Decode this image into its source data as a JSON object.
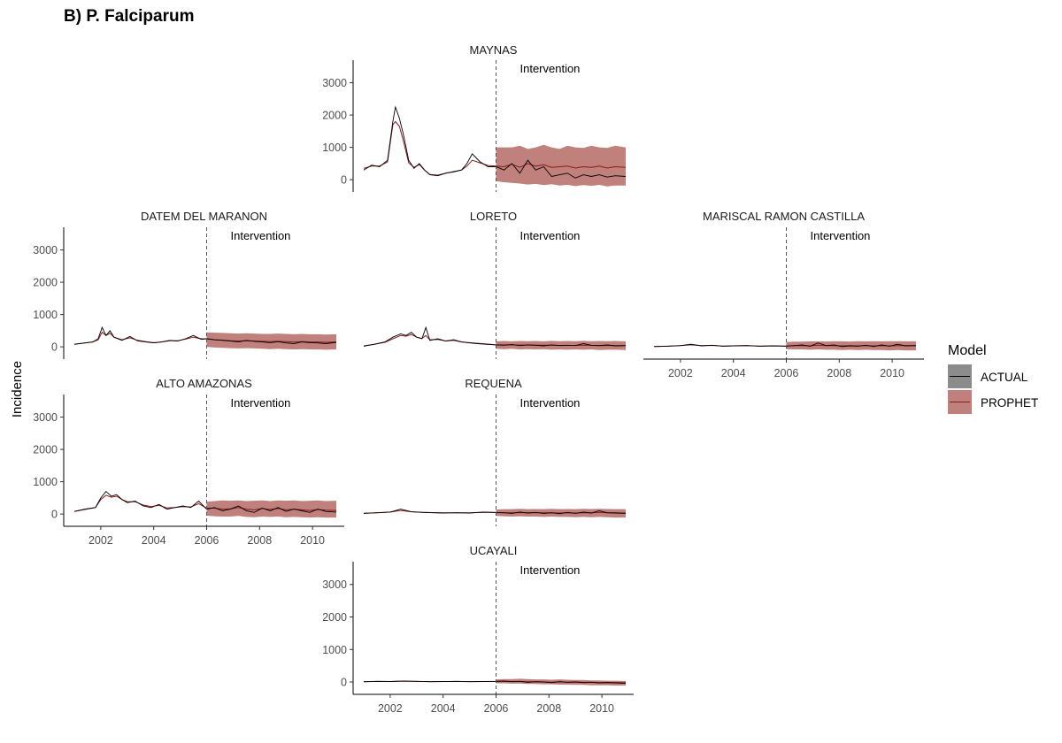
{
  "figure": {
    "title": "B) P. Falciparum"
  },
  "chart_data": {
    "type": "line",
    "title": "B) P. Falciparum",
    "ylabel": "Incidence",
    "xlabel": "",
    "xlim": [
      2000.6,
      2011.2
    ],
    "ylim": [
      -380,
      3700
    ],
    "x_ticks": [
      "2002",
      "2004",
      "2006",
      "2008",
      "2010"
    ],
    "y_ticks": [
      "0",
      "1000",
      "2000",
      "3000"
    ],
    "intervention": {
      "x": 2006,
      "label": "Intervention"
    },
    "legend": {
      "title": "Model",
      "placement": "right",
      "items": [
        {
          "label": "ACTUAL",
          "line_color": "#000000",
          "fill_color": "#8c8c8c"
        },
        {
          "label": "PROPHET",
          "line_color": "#8b1a1a",
          "fill_color": "#c0807c"
        }
      ]
    },
    "colors": {
      "actual": "#000000",
      "prophet": "#8b1a1a",
      "band": "#c0807c"
    },
    "panels": [
      {
        "name": "MAYNAS",
        "x": [
          2001,
          2001.3,
          2001.6,
          2001.9,
          2002.1,
          2002.2,
          2002.35,
          2002.5,
          2002.7,
          2002.9,
          2003.1,
          2003.3,
          2003.5,
          2003.8,
          2004.1,
          2004.4,
          2004.7,
          2004.9,
          2005.1,
          2005.4,
          2005.7,
          2006,
          2006.3,
          2006.6,
          2006.9,
          2007.2,
          2007.5,
          2007.8,
          2008.1,
          2008.4,
          2008.7,
          2009,
          2009.3,
          2009.6,
          2009.9,
          2010.2,
          2010.5,
          2010.9
        ],
        "actual": [
          300,
          450,
          400,
          600,
          1800,
          2250,
          1900,
          1400,
          600,
          350,
          500,
          300,
          150,
          120,
          200,
          250,
          300,
          500,
          800,
          550,
          400,
          400,
          300,
          500,
          200,
          600,
          300,
          400,
          100,
          150,
          200,
          50,
          150,
          100,
          150,
          80,
          120,
          100
        ],
        "prophet": [
          350,
          420,
          420,
          550,
          1700,
          1800,
          1650,
          1200,
          520,
          380,
          470,
          300,
          160,
          140,
          200,
          240,
          300,
          420,
          600,
          520,
          440,
          420,
          400,
          480,
          380,
          500,
          420,
          460,
          380,
          400,
          420,
          360,
          400,
          380,
          420,
          360,
          400,
          380
        ],
        "lower": [
          350,
          420,
          420,
          550,
          1700,
          1800,
          1650,
          1200,
          520,
          380,
          470,
          300,
          160,
          140,
          200,
          240,
          300,
          420,
          600,
          520,
          440,
          -50,
          -80,
          -100,
          -120,
          -150,
          -130,
          -170,
          -140,
          -180,
          -160,
          -200,
          -170,
          -190,
          -160,
          -210,
          -180,
          -180
        ],
        "upper": [
          350,
          420,
          420,
          550,
          1700,
          1800,
          1650,
          1200,
          520,
          380,
          470,
          300,
          160,
          140,
          200,
          240,
          300,
          420,
          600,
          520,
          440,
          1000,
          1000,
          1000,
          1050,
          950,
          1000,
          1080,
          1000,
          950,
          1050,
          1000,
          980,
          1050,
          1000,
          980,
          1050,
          1000
        ]
      },
      {
        "name": "DATEM DEL MARANON",
        "x": [
          2001,
          2001.4,
          2001.7,
          2001.9,
          2002.05,
          2002.2,
          2002.35,
          2002.5,
          2002.8,
          2003.1,
          2003.4,
          2003.7,
          2004,
          2004.3,
          2004.6,
          2004.9,
          2005.2,
          2005.5,
          2005.8,
          2006,
          2006.3,
          2006.6,
          2006.9,
          2007.2,
          2007.5,
          2007.8,
          2008.1,
          2008.4,
          2008.7,
          2009,
          2009.3,
          2009.6,
          2009.9,
          2010.2,
          2010.5,
          2010.9
        ],
        "actual": [
          80,
          120,
          150,
          250,
          600,
          350,
          500,
          300,
          200,
          320,
          180,
          150,
          120,
          150,
          200,
          180,
          250,
          350,
          230,
          250,
          220,
          200,
          180,
          150,
          200,
          170,
          150,
          130,
          160,
          120,
          100,
          150,
          130,
          120,
          100,
          140
        ],
        "prophet": [
          80,
          120,
          150,
          220,
          450,
          350,
          420,
          300,
          220,
          280,
          200,
          160,
          130,
          150,
          190,
          190,
          240,
          300,
          250,
          250,
          220,
          210,
          190,
          180,
          190,
          180,
          170,
          160,
          170,
          160,
          150,
          160,
          150,
          150,
          140,
          150
        ],
        "lower": [
          80,
          120,
          150,
          220,
          450,
          350,
          420,
          300,
          220,
          280,
          200,
          160,
          130,
          150,
          190,
          190,
          240,
          300,
          250,
          0,
          -20,
          -30,
          -40,
          -50,
          -40,
          -50,
          -60,
          -70,
          -60,
          -70,
          -80,
          -70,
          -80,
          -80,
          -90,
          -80
        ],
        "upper": [
          80,
          120,
          150,
          220,
          450,
          350,
          420,
          300,
          220,
          280,
          200,
          160,
          130,
          150,
          190,
          190,
          240,
          300,
          250,
          450,
          440,
          430,
          420,
          410,
          420,
          410,
          400,
          400,
          410,
          400,
          390,
          400,
          390,
          390,
          380,
          390
        ]
      },
      {
        "name": "LORETO",
        "x": [
          2001,
          2001.4,
          2001.8,
          2002.1,
          2002.4,
          2002.6,
          2002.8,
          2003,
          2003.2,
          2003.35,
          2003.5,
          2003.8,
          2004.1,
          2004.4,
          2004.7,
          2005,
          2005.3,
          2005.6,
          2006,
          2006.3,
          2006.6,
          2006.9,
          2007.2,
          2007.5,
          2007.8,
          2008.1,
          2008.4,
          2008.7,
          2009,
          2009.3,
          2009.6,
          2009.9,
          2010.2,
          2010.5,
          2010.9
        ],
        "actual": [
          20,
          80,
          150,
          300,
          400,
          350,
          450,
          300,
          250,
          600,
          200,
          250,
          180,
          220,
          150,
          120,
          100,
          80,
          60,
          50,
          70,
          40,
          60,
          50,
          30,
          60,
          40,
          50,
          40,
          100,
          50,
          40,
          60,
          30,
          40
        ],
        "prophet": [
          30,
          80,
          140,
          250,
          350,
          330,
          380,
          300,
          260,
          350,
          220,
          230,
          180,
          200,
          150,
          130,
          110,
          90,
          60,
          60,
          60,
          55,
          55,
          50,
          50,
          50,
          45,
          45,
          45,
          50,
          45,
          40,
          45,
          40,
          40
        ],
        "lower": [
          30,
          80,
          140,
          250,
          350,
          330,
          380,
          300,
          260,
          350,
          220,
          230,
          180,
          200,
          150,
          130,
          110,
          90,
          -60,
          -70,
          -60,
          -80,
          -70,
          -80,
          -70,
          -90,
          -80,
          -90,
          -80,
          -90,
          -80,
          -100,
          -90,
          -90,
          -100
        ],
        "upper": [
          30,
          80,
          140,
          250,
          350,
          330,
          380,
          300,
          260,
          350,
          220,
          230,
          180,
          200,
          150,
          130,
          110,
          90,
          170,
          180,
          170,
          180,
          175,
          180,
          170,
          185,
          175,
          180,
          175,
          185,
          175,
          180,
          175,
          180,
          170
        ]
      },
      {
        "name": "MARISCAL RAMON CASTILLA",
        "x": [
          2001,
          2001.5,
          2002,
          2002.4,
          2002.8,
          2003.2,
          2003.6,
          2004,
          2004.5,
          2005,
          2005.5,
          2006,
          2006.3,
          2006.6,
          2006.9,
          2007.2,
          2007.5,
          2007.8,
          2008.1,
          2008.4,
          2008.7,
          2009,
          2009.3,
          2009.6,
          2009.9,
          2010.2,
          2010.5,
          2010.9
        ],
        "actual": [
          10,
          20,
          40,
          80,
          30,
          50,
          20,
          30,
          40,
          20,
          30,
          20,
          40,
          60,
          20,
          120,
          40,
          60,
          10,
          30,
          20,
          50,
          10,
          60,
          20,
          80,
          30,
          40
        ],
        "prophet": [
          10,
          20,
          35,
          60,
          35,
          45,
          25,
          30,
          35,
          25,
          30,
          25,
          35,
          40,
          30,
          50,
          40,
          40,
          30,
          35,
          30,
          35,
          30,
          35,
          30,
          40,
          35,
          35
        ],
        "lower": [
          10,
          20,
          35,
          60,
          35,
          45,
          25,
          30,
          35,
          25,
          30,
          -70,
          -80,
          -80,
          -90,
          -80,
          -90,
          -90,
          -100,
          -90,
          -100,
          -90,
          -100,
          -100,
          -110,
          -100,
          -110,
          -110
        ],
        "upper": [
          10,
          20,
          35,
          60,
          35,
          45,
          25,
          30,
          35,
          25,
          30,
          150,
          160,
          160,
          170,
          170,
          165,
          175,
          170,
          165,
          175,
          170,
          175,
          170,
          175,
          175,
          170,
          175
        ]
      },
      {
        "name": "ALTO AMAZONAS",
        "x": [
          2001,
          2001.4,
          2001.8,
          2002,
          2002.2,
          2002.4,
          2002.6,
          2002.8,
          2003,
          2003.3,
          2003.6,
          2003.9,
          2004.2,
          2004.5,
          2004.8,
          2005.1,
          2005.4,
          2005.7,
          2006,
          2006.3,
          2006.6,
          2006.9,
          2007.2,
          2007.5,
          2007.8,
          2008.1,
          2008.4,
          2008.7,
          2009,
          2009.3,
          2009.6,
          2009.9,
          2010.2,
          2010.5,
          2010.9
        ],
        "actual": [
          80,
          150,
          200,
          500,
          700,
          550,
          600,
          450,
          350,
          400,
          250,
          200,
          300,
          150,
          200,
          250,
          200,
          400,
          150,
          200,
          100,
          150,
          250,
          100,
          50,
          180,
          100,
          200,
          80,
          150,
          100,
          50,
          150,
          80,
          60
        ],
        "prophet": [
          80,
          140,
          200,
          450,
          580,
          520,
          550,
          450,
          380,
          380,
          280,
          230,
          270,
          190,
          200,
          230,
          220,
          320,
          180,
          180,
          150,
          160,
          200,
          150,
          130,
          170,
          140,
          170,
          130,
          150,
          130,
          110,
          140,
          120,
          110
        ],
        "lower": [
          80,
          140,
          200,
          450,
          580,
          520,
          550,
          450,
          380,
          380,
          280,
          230,
          270,
          190,
          200,
          230,
          220,
          320,
          -50,
          -70,
          -80,
          -80,
          -60,
          -90,
          -100,
          -80,
          -90,
          -80,
          -100,
          -90,
          -100,
          -110,
          -100,
          -110,
          -110
        ],
        "upper": [
          80,
          140,
          200,
          450,
          580,
          520,
          550,
          450,
          380,
          380,
          280,
          230,
          270,
          190,
          200,
          230,
          220,
          320,
          380,
          400,
          420,
          410,
          420,
          400,
          410,
          420,
          400,
          420,
          410,
          420,
          400,
          410,
          420,
          400,
          410
        ]
      },
      {
        "name": "REQUENA",
        "x": [
          2001,
          2001.5,
          2002,
          2002.4,
          2002.8,
          2003.2,
          2003.6,
          2004,
          2004.5,
          2005,
          2005.5,
          2006,
          2006.3,
          2006.6,
          2006.9,
          2007.2,
          2007.5,
          2007.8,
          2008.1,
          2008.4,
          2008.7,
          2009,
          2009.3,
          2009.6,
          2009.9,
          2010.2,
          2010.5,
          2010.9
        ],
        "actual": [
          20,
          40,
          60,
          150,
          70,
          50,
          40,
          30,
          40,
          30,
          60,
          50,
          40,
          20,
          60,
          30,
          50,
          20,
          40,
          10,
          50,
          20,
          60,
          30,
          100,
          40,
          30,
          20
        ],
        "prophet": [
          25,
          40,
          60,
          110,
          70,
          55,
          45,
          35,
          40,
          35,
          50,
          45,
          40,
          35,
          45,
          40,
          40,
          35,
          40,
          30,
          40,
          30,
          40,
          35,
          50,
          40,
          35,
          30
        ],
        "lower": [
          25,
          40,
          60,
          110,
          70,
          55,
          45,
          35,
          40,
          35,
          50,
          -60,
          -70,
          -80,
          -70,
          -80,
          -80,
          -90,
          -80,
          -90,
          -90,
          -100,
          -90,
          -100,
          -90,
          -100,
          -110,
          -110
        ],
        "upper": [
          25,
          40,
          60,
          110,
          70,
          55,
          45,
          35,
          40,
          35,
          50,
          140,
          150,
          150,
          160,
          150,
          155,
          150,
          160,
          150,
          155,
          150,
          160,
          155,
          160,
          155,
          150,
          150
        ]
      },
      {
        "name": "UCAYALI",
        "x": [
          2001,
          2001.5,
          2002,
          2002.5,
          2003,
          2003.5,
          2004,
          2004.5,
          2005,
          2005.5,
          2006,
          2006.3,
          2006.6,
          2006.9,
          2007.2,
          2007.5,
          2007.8,
          2008.1,
          2008.4,
          2008.7,
          2009,
          2009.3,
          2009.6,
          2009.9,
          2010.2,
          2010.5,
          2010.9
        ],
        "actual": [
          10,
          20,
          15,
          30,
          20,
          10,
          15,
          20,
          10,
          15,
          20,
          30,
          10,
          20,
          -10,
          10,
          0,
          -20,
          10,
          -10,
          0,
          -20,
          -10,
          -30,
          -20,
          -30,
          -40
        ],
        "prophet": [
          10,
          18,
          15,
          25,
          18,
          12,
          15,
          18,
          12,
          15,
          18,
          20,
          15,
          15,
          5,
          8,
          2,
          -5,
          5,
          -5,
          0,
          -10,
          -5,
          -15,
          -10,
          -15,
          -20
        ],
        "lower": [
          10,
          18,
          15,
          25,
          18,
          12,
          15,
          18,
          12,
          15,
          -40,
          -40,
          -50,
          -50,
          -60,
          -60,
          -70,
          -70,
          -80,
          -80,
          -90,
          -90,
          -100,
          -100,
          -100,
          -110,
          -110
        ],
        "upper": [
          10,
          18,
          15,
          25,
          18,
          12,
          15,
          18,
          12,
          15,
          80,
          90,
          90,
          100,
          90,
          80,
          80,
          70,
          80,
          70,
          60,
          60,
          50,
          50,
          40,
          40,
          30
        ]
      }
    ]
  }
}
